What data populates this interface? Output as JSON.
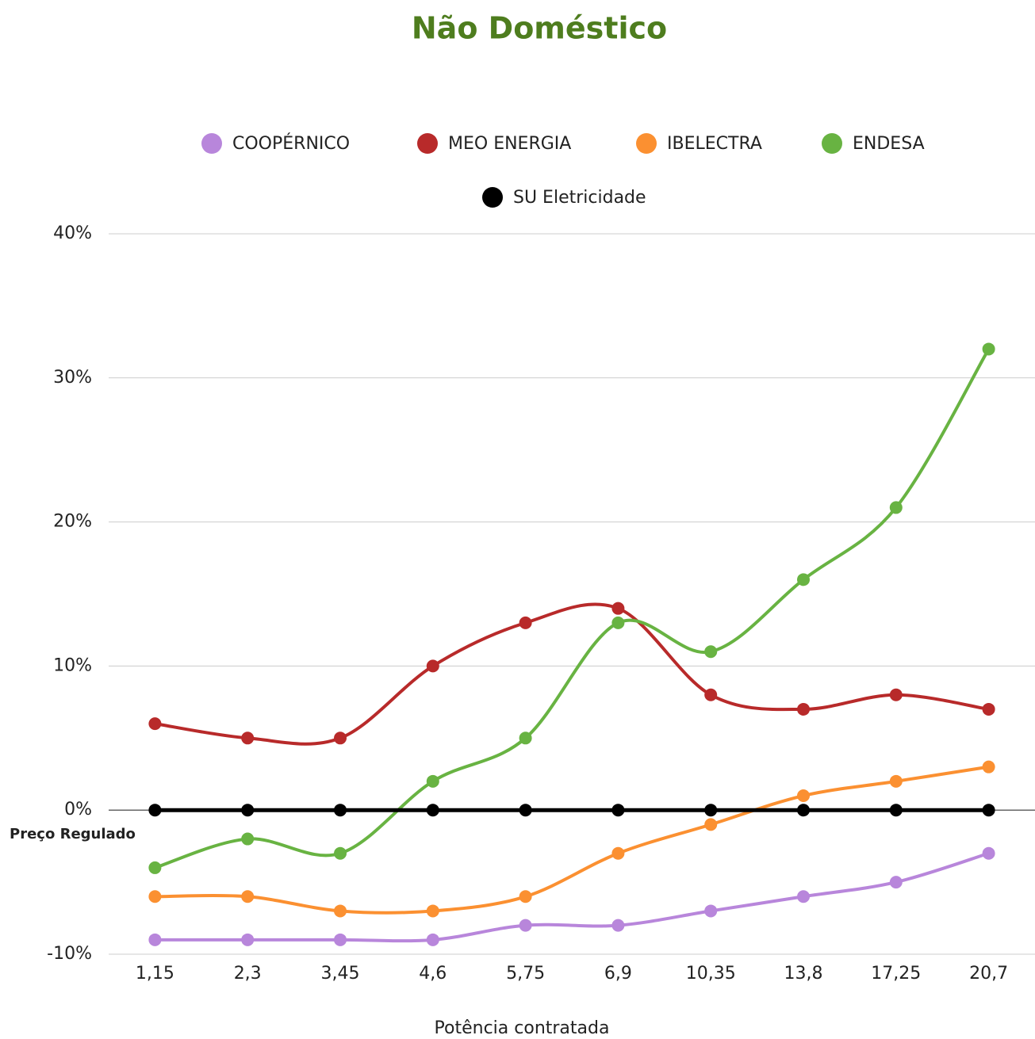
{
  "chart_data": {
    "type": "line",
    "title": "Não Doméstico",
    "x_label": "Potência contratada",
    "annotation": "Preço Regulado",
    "categories": [
      "1,15",
      "2,3",
      "3,45",
      "4,6",
      "5,75",
      "6,9",
      "10,35",
      "13,8",
      "17,25",
      "20,7"
    ],
    "series": [
      {
        "name": "COOPÉRNICO",
        "color": "#b886db",
        "values": [
          -9,
          -9,
          -9,
          -9,
          -8,
          -8,
          -7,
          -6,
          -5,
          -3
        ]
      },
      {
        "name": "MEO ENERGIA",
        "color": "#b82a2a",
        "values": [
          6,
          5,
          5,
          10,
          13,
          14,
          8,
          7,
          8,
          7
        ]
      },
      {
        "name": "IBELECTRA",
        "color": "#fb9031",
        "values": [
          -6,
          -6,
          -7,
          -7,
          -6,
          -3,
          -1,
          1,
          2,
          3
        ]
      },
      {
        "name": "ENDESA",
        "color": "#68b342",
        "values": [
          -4,
          -2,
          -3,
          2,
          5,
          13,
          11,
          16,
          21,
          32
        ]
      },
      {
        "name": "SU Eletricidade",
        "color": "#000000",
        "values": [
          0,
          0,
          0,
          0,
          0,
          0,
          0,
          0,
          0,
          0
        ]
      }
    ],
    "ylim": [
      -10,
      40
    ],
    "yticks": [
      {
        "value": -10,
        "label": "-10%"
      },
      {
        "value": 0,
        "label": "0%"
      },
      {
        "value": 10,
        "label": "10%"
      },
      {
        "value": 20,
        "label": "20%"
      },
      {
        "value": 30,
        "label": "30%"
      },
      {
        "value": 40,
        "label": "40%"
      }
    ],
    "grid": true,
    "legend": "top"
  }
}
